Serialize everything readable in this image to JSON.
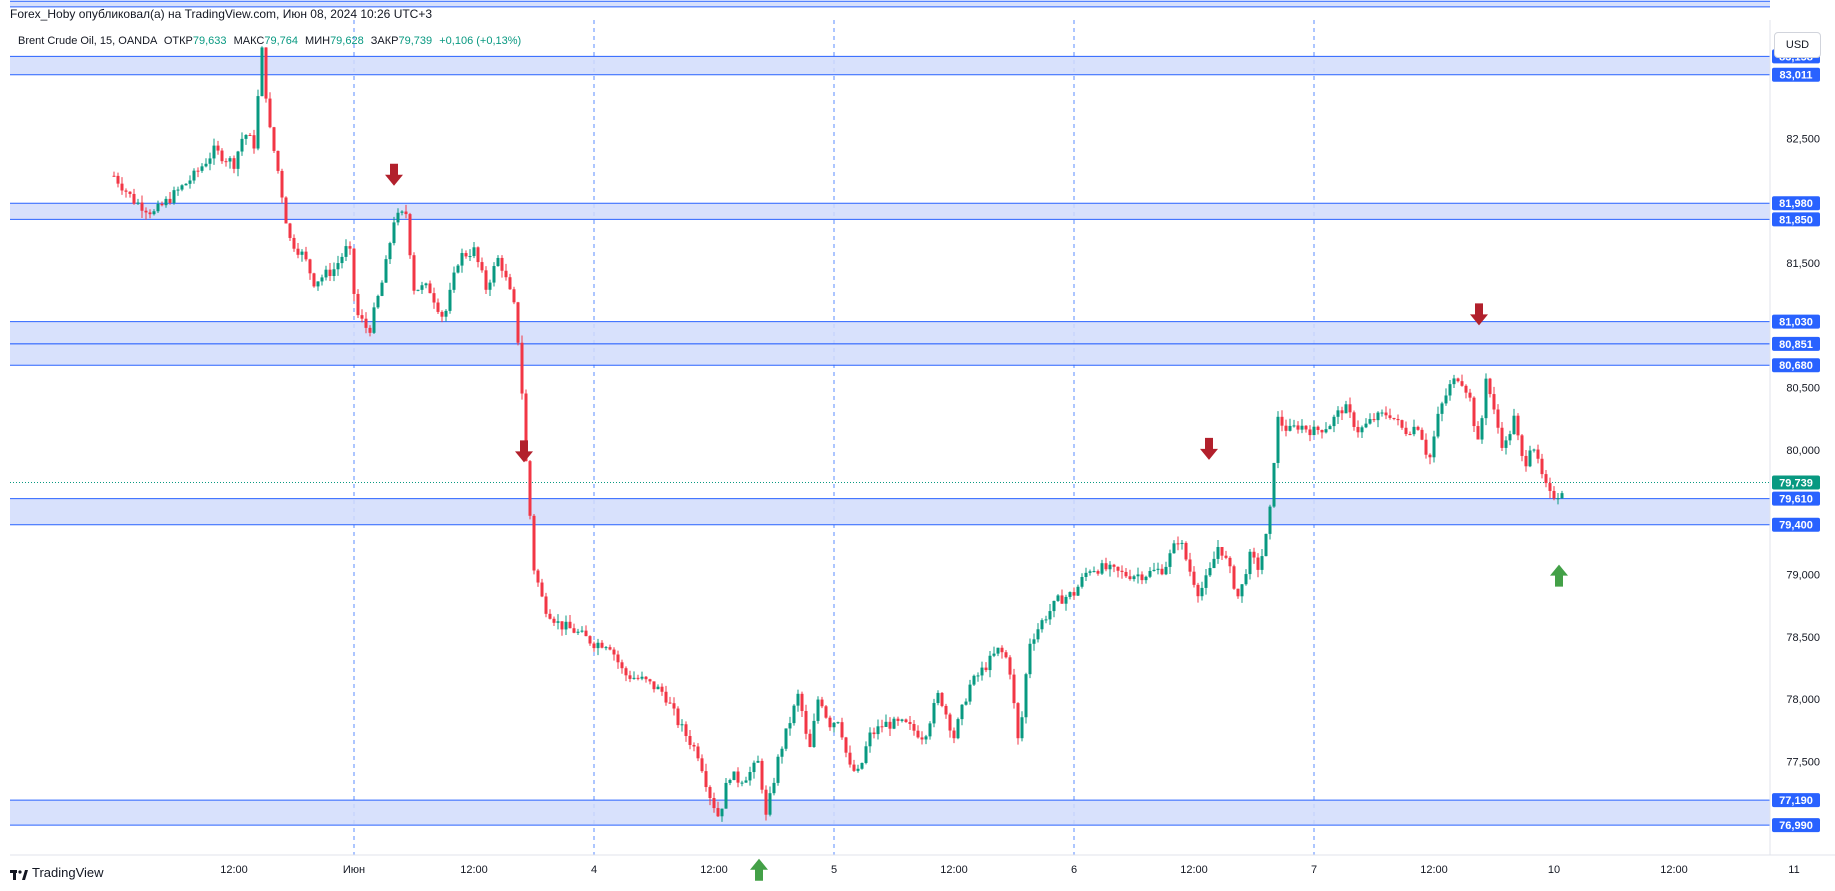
{
  "header": {
    "publisher": "Forex_Hoby опубликовал(а) на TradingView.com, Июн 08, 2024 10:26 UTC+3"
  },
  "legend": {
    "symbol": "Brent Crude Oil, 15, OANDA",
    "open_label": "ОТКР",
    "open_value": "79,633",
    "high_label": "МАКС",
    "high_value": "79,764",
    "low_label": "МИН",
    "low_value": "79,628",
    "close_label": "ЗАКР",
    "close_value": "79,739",
    "change": "+0,106 (+0,13%)"
  },
  "currency_button": "USD",
  "brand": {
    "name": "TradingView",
    "icon": "tradingview-logo-icon"
  },
  "colors": {
    "up": "#089981",
    "down": "#f23645",
    "zone_fill": "#d1dcfb",
    "zone_line": "#2962ff",
    "label_blue": "#2962ff",
    "label_green": "#089981",
    "arrow_down": "#b2202c",
    "arrow_up": "#43a047",
    "grid_v": "#5b8cff"
  },
  "chart_data": {
    "type": "candlestick",
    "instrument": "Brent Crude Oil",
    "timeframe": "15",
    "source": "OANDA",
    "y_range": [
      76.75,
      83.45
    ],
    "y_ticks": [
      {
        "v": 82.5,
        "label": "82,500"
      },
      {
        "v": 81.5,
        "label": "81,500"
      },
      {
        "v": 80.5,
        "label": "80,500"
      },
      {
        "v": 80.0,
        "label": "80,000"
      },
      {
        "v": 79.0,
        "label": "79,000"
      },
      {
        "v": 78.5,
        "label": "78,500"
      },
      {
        "v": 78.0,
        "label": "78,000"
      },
      {
        "v": 77.5,
        "label": "77,500"
      }
    ],
    "x_ticks": [
      {
        "t": 12,
        "label": "12:00"
      },
      {
        "t": 24,
        "label": "Июн"
      },
      {
        "t": 36,
        "label": "12:00"
      },
      {
        "t": 48,
        "label": "4"
      },
      {
        "t": 60,
        "label": "12:00"
      },
      {
        "t": 72,
        "label": "5"
      },
      {
        "t": 84,
        "label": "12:00"
      },
      {
        "t": 96,
        "label": "6"
      },
      {
        "t": 108,
        "label": "12:00"
      },
      {
        "t": 120,
        "label": "7"
      },
      {
        "t": 132,
        "label": "12:00"
      },
      {
        "t": 144,
        "label": "10"
      },
      {
        "t": 156,
        "label": "12:00"
      },
      {
        "t": 168,
        "label": "11"
      }
    ],
    "day_separators": [
      24,
      48,
      72,
      96,
      120
    ],
    "zones": [
      {
        "top": 83.6,
        "bottom": 83.555
      },
      {
        "top": 83.158,
        "bottom": 83.011
      },
      {
        "top": 81.98,
        "bottom": 81.85
      },
      {
        "top": 81.03,
        "bottom": 80.851
      },
      {
        "top": 80.851,
        "bottom": 80.68
      },
      {
        "top": 79.61,
        "bottom": 79.4
      },
      {
        "top": 77.19,
        "bottom": 76.99
      }
    ],
    "price_labels": [
      {
        "v": 83.158,
        "label": "83,158",
        "color": "blue"
      },
      {
        "v": 83.011,
        "label": "83,011",
        "color": "blue"
      },
      {
        "v": 81.98,
        "label": "81,980",
        "color": "blue"
      },
      {
        "v": 81.85,
        "label": "81,850",
        "color": "blue"
      },
      {
        "v": 81.03,
        "label": "81,030",
        "color": "blue"
      },
      {
        "v": 80.851,
        "label": "80,851",
        "color": "blue"
      },
      {
        "v": 80.68,
        "label": "80,680",
        "color": "blue"
      },
      {
        "v": 79.739,
        "label": "79,739",
        "color": "green"
      },
      {
        "v": 79.61,
        "label": "79,610",
        "color": "blue"
      },
      {
        "v": 79.4,
        "label": "79,400",
        "color": "blue"
      },
      {
        "v": 77.19,
        "label": "77,190",
        "color": "blue"
      },
      {
        "v": 76.99,
        "label": "76,990",
        "color": "blue"
      }
    ],
    "last_price": 79.739,
    "arrows": [
      {
        "t": 28,
        "v": 82.12,
        "dir": "down"
      },
      {
        "t": 41,
        "v": 79.9,
        "dir": "down"
      },
      {
        "t": 64.5,
        "v": 76.72,
        "dir": "up"
      },
      {
        "t": 109.5,
        "v": 79.92,
        "dir": "down"
      },
      {
        "t": 136.5,
        "v": 81.0,
        "dir": "up_down"
      },
      {
        "t": 144.5,
        "v": 79.08,
        "dir": "up"
      }
    ],
    "price_path": [
      [
        0,
        82.2
      ],
      [
        2,
        82.0
      ],
      [
        4,
        81.9
      ],
      [
        6,
        82.05
      ],
      [
        8,
        82.2
      ],
      [
        10,
        82.4
      ],
      [
        12,
        82.3
      ],
      [
        13,
        82.55
      ],
      [
        14,
        82.45
      ],
      [
        14.8,
        83.2
      ],
      [
        15.5,
        82.6
      ],
      [
        16.5,
        82.2
      ],
      [
        17.5,
        81.7
      ],
      [
        19,
        81.55
      ],
      [
        20,
        81.35
      ],
      [
        22,
        81.45
      ],
      [
        23.5,
        81.65
      ],
      [
        24.2,
        81.1
      ],
      [
        25.5,
        80.95
      ],
      [
        27,
        81.4
      ],
      [
        28,
        81.85
      ],
      [
        29.2,
        81.9
      ],
      [
        30,
        81.3
      ],
      [
        31.5,
        81.3
      ],
      [
        33,
        81.05
      ],
      [
        34.5,
        81.55
      ],
      [
        36,
        81.6
      ],
      [
        37.2,
        81.3
      ],
      [
        38.5,
        81.55
      ],
      [
        40,
        81.15
      ],
      [
        40.6,
        80.75
      ],
      [
        41.2,
        79.9
      ],
      [
        42,
        79.05
      ],
      [
        43,
        78.75
      ],
      [
        44.5,
        78.6
      ],
      [
        46,
        78.55
      ],
      [
        48,
        78.45
      ],
      [
        49.5,
        78.45
      ],
      [
        51,
        78.2
      ],
      [
        53,
        78.15
      ],
      [
        55,
        78.05
      ],
      [
        56.5,
        77.8
      ],
      [
        58.5,
        77.55
      ],
      [
        59.5,
        77.25
      ],
      [
        60.5,
        77.05
      ],
      [
        61.5,
        77.4
      ],
      [
        62.5,
        77.35
      ],
      [
        63.5,
        77.4
      ],
      [
        64.5,
        77.5
      ],
      [
        65.2,
        77.05
      ],
      [
        66.5,
        77.55
      ],
      [
        67.5,
        77.8
      ],
      [
        68.5,
        78.05
      ],
      [
        69.5,
        77.55
      ],
      [
        70.5,
        78.05
      ],
      [
        71.5,
        77.8
      ],
      [
        72.5,
        77.85
      ],
      [
        73.5,
        77.45
      ],
      [
        74.5,
        77.4
      ],
      [
        75.5,
        77.7
      ],
      [
        77,
        77.8
      ],
      [
        79,
        77.8
      ],
      [
        81,
        77.7
      ],
      [
        82.5,
        78.05
      ],
      [
        84,
        77.7
      ],
      [
        85.5,
        78.1
      ],
      [
        87,
        78.25
      ],
      [
        88.5,
        78.4
      ],
      [
        89.5,
        78.3
      ],
      [
        90.5,
        77.6
      ],
      [
        91.5,
        78.45
      ],
      [
        93,
        78.65
      ],
      [
        94.5,
        78.8
      ],
      [
        96,
        78.85
      ],
      [
        97.5,
        79.05
      ],
      [
        99,
        79.05
      ],
      [
        101,
        79.0
      ],
      [
        103,
        79.0
      ],
      [
        105,
        79.05
      ],
      [
        106.5,
        79.3
      ],
      [
        107.5,
        79.05
      ],
      [
        108.5,
        78.85
      ],
      [
        109.5,
        79.0
      ],
      [
        110.5,
        79.25
      ],
      [
        111.5,
        79.05
      ],
      [
        112.5,
        78.8
      ],
      [
        113.5,
        79.15
      ],
      [
        114.5,
        79.05
      ],
      [
        115.5,
        79.4
      ],
      [
        116.3,
        80.25
      ],
      [
        117.5,
        80.15
      ],
      [
        118.5,
        80.2
      ],
      [
        120,
        80.15
      ],
      [
        121.5,
        80.2
      ],
      [
        123,
        80.35
      ],
      [
        124.5,
        80.15
      ],
      [
        126,
        80.25
      ],
      [
        127.5,
        80.3
      ],
      [
        129,
        80.15
      ],
      [
        130.5,
        80.2
      ],
      [
        131.5,
        79.9
      ],
      [
        132.5,
        80.3
      ],
      [
        133.5,
        80.5
      ],
      [
        134.5,
        80.6
      ],
      [
        135.5,
        80.45
      ],
      [
        136.5,
        80.0
      ],
      [
        137.2,
        80.6
      ],
      [
        138,
        80.3
      ],
      [
        139,
        80.0
      ],
      [
        140,
        80.25
      ],
      [
        141,
        79.85
      ],
      [
        141.8,
        80.1
      ],
      [
        142.5,
        79.85
      ],
      [
        143.5,
        79.63
      ],
      [
        144.5,
        79.65
      ],
      [
        145.2,
        79.74
      ]
    ]
  }
}
